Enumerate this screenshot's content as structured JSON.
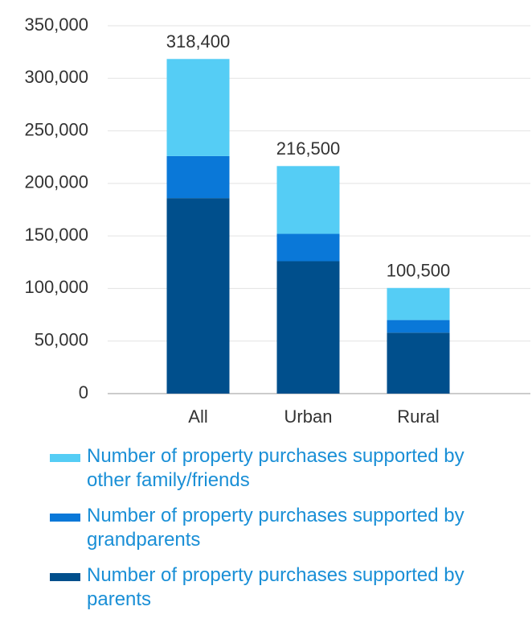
{
  "chart_data": {
    "type": "stacked_bar",
    "categories": [
      "All",
      "Urban",
      "Rural"
    ],
    "series": [
      {
        "name": "Number of property purchases supported by parents",
        "color": "#004f8c",
        "values": [
          186000,
          126000,
          58000
        ]
      },
      {
        "name": "Number of property purchases supported by grandparents",
        "color": "#0a78d8",
        "values": [
          40000,
          26000,
          12000
        ]
      },
      {
        "name": "Number of property purchases supported by other family/friends",
        "color": "#55cdf5",
        "values": [
          92400,
          64500,
          30500
        ]
      }
    ],
    "totals": [
      318400,
      216500,
      100500
    ],
    "total_labels": [
      "318,400",
      "216,500",
      "100,500"
    ],
    "ylim": [
      0,
      350000
    ],
    "yticks": [
      0,
      {
        "value": 50000,
        "label": "50,000"
      },
      {
        "value": 100000,
        "label": "100,000"
      },
      {
        "value": 150000,
        "label": "150,000"
      },
      {
        "value": 200000,
        "label": "200,000"
      },
      {
        "value": 250000,
        "label": "250,000"
      },
      {
        "value": 300000,
        "label": "300,000"
      },
      {
        "value": 350000,
        "label": "350,000"
      }
    ],
    "grid": true,
    "legend": "bottom"
  }
}
